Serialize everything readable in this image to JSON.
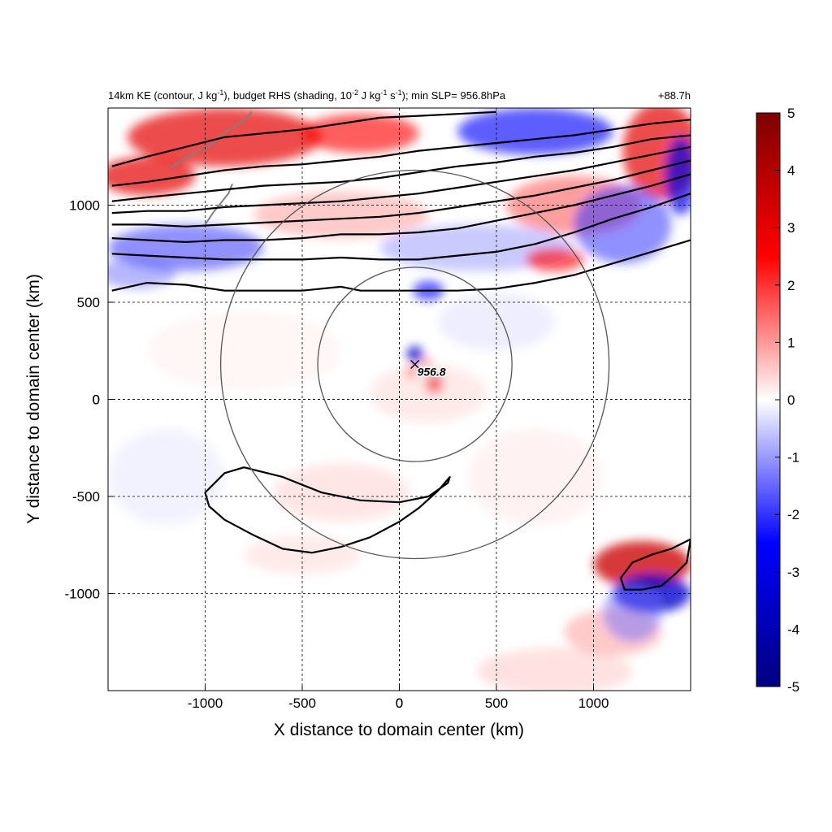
{
  "chart_data": {
    "type": "heatmap",
    "title_left": "14km KE (contour, J kg-1), budget RHS (shading, 10-2 J kg-1 s-1); min SLP= 956.8hPa",
    "title_parts": [
      {
        "text": "14km KE (contour, J kg",
        "sup": false
      },
      {
        "text": "-1",
        "sup": true
      },
      {
        "text": "), budget RHS (shading, 10",
        "sup": false
      },
      {
        "text": "-2",
        "sup": true
      },
      {
        "text": " J kg",
        "sup": false
      },
      {
        "text": "-1",
        "sup": true
      },
      {
        "text": " s",
        "sup": false
      },
      {
        "text": "-1",
        "sup": true
      },
      {
        "text": "); min SLP= 956.8hPa",
        "sup": false
      }
    ],
    "title_right": "+88.7h",
    "xlabel": "X distance to domain center (km)",
    "ylabel": "Y distance to domain center (km)",
    "xlim": [
      -1500,
      1500
    ],
    "ylim": [
      -1500,
      1500
    ],
    "xticks": [
      -1000,
      -500,
      0,
      500,
      1000
    ],
    "yticks": [
      -1000,
      -500,
      0,
      500,
      1000
    ],
    "grid": true,
    "colorbar": {
      "min": -5,
      "max": 5,
      "ticks": [
        5,
        4,
        3,
        2,
        1,
        0,
        -1,
        -2,
        -3,
        -4,
        -5
      ],
      "colormap": [
        "#00007f",
        "#0000ff",
        "#ffffff",
        "#ff0000",
        "#7f0000"
      ]
    },
    "storm_center": {
      "x": 80,
      "y": 180,
      "label": "956.8"
    },
    "range_rings_km": [
      500,
      1000
    ],
    "shading_features": [
      {
        "x": -900,
        "y": 1350,
        "rx": 500,
        "ry": 150,
        "value": 3
      },
      {
        "x": -200,
        "y": 1370,
        "rx": 300,
        "ry": 100,
        "value": 2.5
      },
      {
        "x": 700,
        "y": 1380,
        "rx": 400,
        "ry": 120,
        "value": -2.5
      },
      {
        "x": 1350,
        "y": 1280,
        "rx": 200,
        "ry": 250,
        "value": 3
      },
      {
        "x": 1450,
        "y": 1150,
        "rx": 80,
        "ry": 200,
        "value": -3
      },
      {
        "x": -1300,
        "y": 1150,
        "rx": 250,
        "ry": 100,
        "value": 3
      },
      {
        "x": -1100,
        "y": 780,
        "rx": 400,
        "ry": 120,
        "value": -2
      },
      {
        "x": -1350,
        "y": 650,
        "rx": 200,
        "ry": 80,
        "value": -1.5
      },
      {
        "x": -300,
        "y": 950,
        "rx": 450,
        "ry": 120,
        "value": 1.2
      },
      {
        "x": 400,
        "y": 780,
        "rx": 500,
        "ry": 120,
        "value": -1.2
      },
      {
        "x": 900,
        "y": 1000,
        "rx": 350,
        "ry": 150,
        "value": 1.8
      },
      {
        "x": 1150,
        "y": 900,
        "rx": 250,
        "ry": 200,
        "value": -2
      },
      {
        "x": 800,
        "y": 720,
        "rx": 150,
        "ry": 60,
        "value": 2.5
      },
      {
        "x": 150,
        "y": 560,
        "rx": 80,
        "ry": 50,
        "value": -2.5
      },
      {
        "x": 80,
        "y": 230,
        "rx": 40,
        "ry": 45,
        "value": -3.5
      },
      {
        "x": 60,
        "y": 140,
        "rx": 25,
        "ry": 30,
        "value": 2.5
      },
      {
        "x": 180,
        "y": 80,
        "rx": 45,
        "ry": 50,
        "value": 3
      },
      {
        "x": 140,
        "y": 190,
        "rx": 25,
        "ry": 25,
        "value": 2
      },
      {
        "x": 150,
        "y": 30,
        "rx": 300,
        "ry": 150,
        "value": 0.6
      },
      {
        "x": -300,
        "y": -480,
        "rx": 350,
        "ry": 150,
        "value": 0.7
      },
      {
        "x": -500,
        "y": -800,
        "rx": 300,
        "ry": 100,
        "value": 0.6
      },
      {
        "x": -1200,
        "y": -400,
        "rx": 300,
        "ry": 250,
        "value": -0.4
      },
      {
        "x": 1250,
        "y": -850,
        "rx": 250,
        "ry": 120,
        "value": 3.5
      },
      {
        "x": 1300,
        "y": -1000,
        "rx": 200,
        "ry": 100,
        "value": -3.5
      },
      {
        "x": 1100,
        "y": -1200,
        "rx": 250,
        "ry": 120,
        "value": 1.2
      },
      {
        "x": 1200,
        "y": -1100,
        "rx": 150,
        "ry": 150,
        "value": -1.5
      },
      {
        "x": 800,
        "y": -1400,
        "rx": 400,
        "ry": 120,
        "value": 0.8
      },
      {
        "x": 700,
        "y": -400,
        "rx": 350,
        "ry": 250,
        "value": 0.4
      },
      {
        "x": -800,
        "y": 250,
        "rx": 500,
        "ry": 200,
        "value": 0.3
      },
      {
        "x": 500,
        "y": 400,
        "rx": 300,
        "ry": 150,
        "value": -0.5
      }
    ],
    "ke_contours": [
      {
        "points": [
          [
            -1480,
            560
          ],
          [
            -1300,
            600
          ],
          [
            -1100,
            590
          ],
          [
            -900,
            560
          ],
          [
            -700,
            560
          ],
          [
            -500,
            560
          ],
          [
            -300,
            580
          ],
          [
            -200,
            560
          ],
          [
            -100,
            560
          ],
          [
            0,
            560
          ],
          [
            150,
            560
          ],
          [
            300,
            560
          ],
          [
            500,
            570
          ],
          [
            700,
            600
          ],
          [
            900,
            640
          ],
          [
            1100,
            700
          ],
          [
            1300,
            760
          ],
          [
            1500,
            820
          ]
        ]
      },
      {
        "points": [
          [
            -1480,
            750
          ],
          [
            -1300,
            740
          ],
          [
            -1100,
            730
          ],
          [
            -900,
            720
          ],
          [
            -700,
            720
          ],
          [
            -500,
            720
          ],
          [
            -300,
            730
          ],
          [
            -100,
            720
          ],
          [
            100,
            720
          ],
          [
            300,
            740
          ],
          [
            500,
            760
          ],
          [
            700,
            800
          ],
          [
            900,
            860
          ],
          [
            1100,
            930
          ],
          [
            1300,
            990
          ],
          [
            1500,
            1060
          ]
        ]
      },
      {
        "points": [
          [
            -1480,
            830
          ],
          [
            -1300,
            820
          ],
          [
            -1100,
            810
          ],
          [
            -900,
            820
          ],
          [
            -700,
            820
          ],
          [
            -500,
            830
          ],
          [
            -300,
            850
          ],
          [
            -100,
            850
          ],
          [
            100,
            860
          ],
          [
            300,
            880
          ],
          [
            500,
            920
          ],
          [
            700,
            960
          ],
          [
            900,
            1000
          ],
          [
            1100,
            1050
          ],
          [
            1300,
            1100
          ],
          [
            1500,
            1160
          ]
        ]
      },
      {
        "points": [
          [
            -1480,
            900
          ],
          [
            -1300,
            900
          ],
          [
            -1100,
            890
          ],
          [
            -900,
            900
          ],
          [
            -700,
            910
          ],
          [
            -500,
            920
          ],
          [
            -300,
            930
          ],
          [
            -100,
            940
          ],
          [
            100,
            960
          ],
          [
            300,
            990
          ],
          [
            500,
            1020
          ],
          [
            700,
            1050
          ],
          [
            900,
            1090
          ],
          [
            1100,
            1130
          ],
          [
            1300,
            1180
          ],
          [
            1500,
            1230
          ]
        ]
      },
      {
        "points": [
          [
            -1480,
            960
          ],
          [
            -1300,
            970
          ],
          [
            -1100,
            970
          ],
          [
            -900,
            990
          ],
          [
            -700,
            1000
          ],
          [
            -500,
            1010
          ],
          [
            -300,
            1020
          ],
          [
            -100,
            1040
          ],
          [
            100,
            1060
          ],
          [
            300,
            1090
          ],
          [
            500,
            1120
          ],
          [
            700,
            1150
          ],
          [
            900,
            1180
          ],
          [
            1100,
            1220
          ],
          [
            1300,
            1260
          ],
          [
            1500,
            1300
          ]
        ]
      },
      {
        "points": [
          [
            -1480,
            1020
          ],
          [
            -1300,
            1040
          ],
          [
            -1100,
            1060
          ],
          [
            -900,
            1080
          ],
          [
            -700,
            1100
          ],
          [
            -500,
            1110
          ],
          [
            -300,
            1120
          ],
          [
            -100,
            1140
          ],
          [
            100,
            1170
          ],
          [
            300,
            1200
          ],
          [
            500,
            1220
          ],
          [
            700,
            1250
          ],
          [
            900,
            1270
          ],
          [
            1100,
            1300
          ],
          [
            1300,
            1340
          ],
          [
            1500,
            1360
          ]
        ]
      },
      {
        "points": [
          [
            -1480,
            1100
          ],
          [
            -1300,
            1120
          ],
          [
            -1100,
            1150
          ],
          [
            -900,
            1180
          ],
          [
            -700,
            1200
          ],
          [
            -500,
            1210
          ],
          [
            -300,
            1230
          ],
          [
            -100,
            1250
          ],
          [
            100,
            1280
          ],
          [
            300,
            1300
          ],
          [
            500,
            1320
          ],
          [
            700,
            1340
          ],
          [
            900,
            1360
          ],
          [
            1100,
            1390
          ],
          [
            1300,
            1420
          ],
          [
            1500,
            1440
          ]
        ]
      },
      {
        "points": [
          [
            -1480,
            1200
          ],
          [
            -1300,
            1250
          ],
          [
            -1100,
            1300
          ],
          [
            -900,
            1350
          ],
          [
            -700,
            1370
          ],
          [
            -500,
            1390
          ],
          [
            -300,
            1420
          ],
          [
            -100,
            1450
          ],
          [
            100,
            1460
          ],
          [
            300,
            1470
          ],
          [
            500,
            1480
          ]
        ]
      },
      {
        "closed": true,
        "points": [
          [
            -1000,
            -480
          ],
          [
            -900,
            -380
          ],
          [
            -800,
            -350
          ],
          [
            -600,
            -400
          ],
          [
            -400,
            -480
          ],
          [
            -200,
            -520
          ],
          [
            0,
            -530
          ],
          [
            150,
            -500
          ],
          [
            250,
            -430
          ],
          [
            260,
            -400
          ],
          [
            200,
            -470
          ],
          [
            100,
            -560
          ],
          [
            0,
            -630
          ],
          [
            -150,
            -710
          ],
          [
            -300,
            -760
          ],
          [
            -450,
            -790
          ],
          [
            -600,
            -770
          ],
          [
            -750,
            -700
          ],
          [
            -900,
            -620
          ],
          [
            -980,
            -550
          ]
        ]
      },
      {
        "closed": true,
        "points": [
          [
            1500,
            -720
          ],
          [
            1400,
            -770
          ],
          [
            1300,
            -800
          ],
          [
            1200,
            -840
          ],
          [
            1140,
            -920
          ],
          [
            1160,
            -980
          ],
          [
            1250,
            -980
          ],
          [
            1350,
            -960
          ],
          [
            1420,
            -900
          ],
          [
            1480,
            -840
          ]
        ]
      }
    ]
  },
  "colors": {
    "contour": "#000000",
    "ring": "#555555",
    "grid": "#000000",
    "coastline": "#808080"
  }
}
